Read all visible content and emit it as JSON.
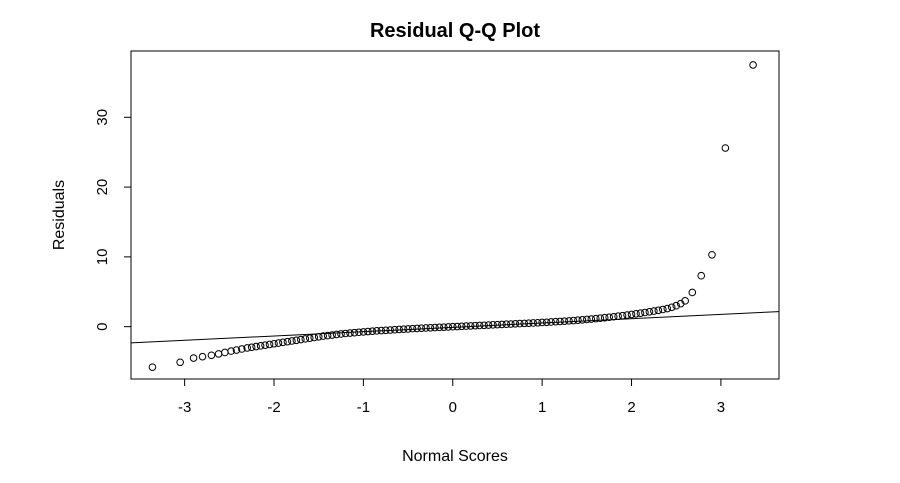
{
  "chart_data": {
    "type": "scatter",
    "title": "Residual Q-Q Plot",
    "xlabel": "Normal Scores",
    "ylabel": "Residuals",
    "xlim": [
      -3.6,
      3.65
    ],
    "ylim": [
      -7.5,
      39.5
    ],
    "x_ticks": [
      -3,
      -2,
      -1,
      0,
      1,
      2,
      3
    ],
    "y_ticks": [
      0,
      10,
      20,
      30
    ],
    "grid": false,
    "reference_line": {
      "slope": 0.62,
      "intercept": -0.1
    },
    "points": [
      {
        "x": -3.36,
        "y": -5.8
      },
      {
        "x": -3.05,
        "y": -5.1
      },
      {
        "x": -2.9,
        "y": -4.5
      },
      {
        "x": -2.8,
        "y": -4.3
      },
      {
        "x": -2.7,
        "y": -4.1
      },
      {
        "x": -2.62,
        "y": -3.9
      },
      {
        "x": -2.55,
        "y": -3.7
      },
      {
        "x": -2.48,
        "y": -3.5
      },
      {
        "x": -2.42,
        "y": -3.35
      },
      {
        "x": -2.36,
        "y": -3.2
      },
      {
        "x": -2.3,
        "y": -3.05
      },
      {
        "x": -2.25,
        "y": -2.95
      },
      {
        "x": -2.2,
        "y": -2.85
      },
      {
        "x": -2.15,
        "y": -2.75
      },
      {
        "x": -2.1,
        "y": -2.65
      },
      {
        "x": -2.05,
        "y": -2.55
      },
      {
        "x": -2.0,
        "y": -2.45
      },
      {
        "x": -1.95,
        "y": -2.35
      },
      {
        "x": -1.9,
        "y": -2.25
      },
      {
        "x": -1.85,
        "y": -2.15
      },
      {
        "x": -1.8,
        "y": -2.05
      },
      {
        "x": -1.75,
        "y": -1.95
      },
      {
        "x": -1.7,
        "y": -1.85
      },
      {
        "x": -1.65,
        "y": -1.75
      },
      {
        "x": -1.6,
        "y": -1.65
      },
      {
        "x": -1.55,
        "y": -1.55
      },
      {
        "x": -1.5,
        "y": -1.45
      },
      {
        "x": -1.45,
        "y": -1.35
      },
      {
        "x": -1.4,
        "y": -1.28
      },
      {
        "x": -1.35,
        "y": -1.2
      },
      {
        "x": -1.3,
        "y": -1.12
      },
      {
        "x": -1.25,
        "y": -1.05
      },
      {
        "x": -1.2,
        "y": -0.98
      },
      {
        "x": -1.15,
        "y": -0.92
      },
      {
        "x": -1.1,
        "y": -0.86
      },
      {
        "x": -1.05,
        "y": -0.8
      },
      {
        "x": -1.0,
        "y": -0.75
      },
      {
        "x": -0.95,
        "y": -0.7
      },
      {
        "x": -0.9,
        "y": -0.65
      },
      {
        "x": -0.85,
        "y": -0.6
      },
      {
        "x": -0.8,
        "y": -0.56
      },
      {
        "x": -0.75,
        "y": -0.52
      },
      {
        "x": -0.7,
        "y": -0.48
      },
      {
        "x": -0.65,
        "y": -0.44
      },
      {
        "x": -0.6,
        "y": -0.4
      },
      {
        "x": -0.55,
        "y": -0.36
      },
      {
        "x": -0.5,
        "y": -0.32
      },
      {
        "x": -0.45,
        "y": -0.28
      },
      {
        "x": -0.4,
        "y": -0.25
      },
      {
        "x": -0.35,
        "y": -0.22
      },
      {
        "x": -0.3,
        "y": -0.19
      },
      {
        "x": -0.25,
        "y": -0.16
      },
      {
        "x": -0.2,
        "y": -0.13
      },
      {
        "x": -0.15,
        "y": -0.1
      },
      {
        "x": -0.1,
        "y": -0.07
      },
      {
        "x": -0.05,
        "y": -0.04
      },
      {
        "x": 0.0,
        "y": -0.01
      },
      {
        "x": 0.05,
        "y": 0.02
      },
      {
        "x": 0.1,
        "y": 0.05
      },
      {
        "x": 0.15,
        "y": 0.08
      },
      {
        "x": 0.2,
        "y": 0.11
      },
      {
        "x": 0.25,
        "y": 0.14
      },
      {
        "x": 0.3,
        "y": 0.17
      },
      {
        "x": 0.35,
        "y": 0.2
      },
      {
        "x": 0.4,
        "y": 0.23
      },
      {
        "x": 0.45,
        "y": 0.26
      },
      {
        "x": 0.5,
        "y": 0.29
      },
      {
        "x": 0.55,
        "y": 0.32
      },
      {
        "x": 0.6,
        "y": 0.35
      },
      {
        "x": 0.65,
        "y": 0.38
      },
      {
        "x": 0.7,
        "y": 0.41
      },
      {
        "x": 0.75,
        "y": 0.44
      },
      {
        "x": 0.8,
        "y": 0.47
      },
      {
        "x": 0.85,
        "y": 0.5
      },
      {
        "x": 0.9,
        "y": 0.53
      },
      {
        "x": 0.95,
        "y": 0.56
      },
      {
        "x": 1.0,
        "y": 0.6
      },
      {
        "x": 1.05,
        "y": 0.63
      },
      {
        "x": 1.1,
        "y": 0.67
      },
      {
        "x": 1.15,
        "y": 0.71
      },
      {
        "x": 1.2,
        "y": 0.75
      },
      {
        "x": 1.25,
        "y": 0.79
      },
      {
        "x": 1.3,
        "y": 0.83
      },
      {
        "x": 1.35,
        "y": 0.88
      },
      {
        "x": 1.4,
        "y": 0.93
      },
      {
        "x": 1.45,
        "y": 0.98
      },
      {
        "x": 1.5,
        "y": 1.03
      },
      {
        "x": 1.55,
        "y": 1.09
      },
      {
        "x": 1.6,
        "y": 1.15
      },
      {
        "x": 1.65,
        "y": 1.21
      },
      {
        "x": 1.7,
        "y": 1.28
      },
      {
        "x": 1.75,
        "y": 1.35
      },
      {
        "x": 1.8,
        "y": 1.42
      },
      {
        "x": 1.85,
        "y": 1.5
      },
      {
        "x": 1.9,
        "y": 1.58
      },
      {
        "x": 1.95,
        "y": 1.66
      },
      {
        "x": 2.0,
        "y": 1.75
      },
      {
        "x": 2.05,
        "y": 1.84
      },
      {
        "x": 2.1,
        "y": 1.93
      },
      {
        "x": 2.15,
        "y": 2.03
      },
      {
        "x": 2.2,
        "y": 2.13
      },
      {
        "x": 2.25,
        "y": 2.23
      },
      {
        "x": 2.3,
        "y": 2.34
      },
      {
        "x": 2.35,
        "y": 2.46
      },
      {
        "x": 2.4,
        "y": 2.6
      },
      {
        "x": 2.45,
        "y": 2.78
      },
      {
        "x": 2.5,
        "y": 3.0
      },
      {
        "x": 2.55,
        "y": 3.3
      },
      {
        "x": 2.6,
        "y": 3.7
      },
      {
        "x": 2.68,
        "y": 4.9
      },
      {
        "x": 2.78,
        "y": 7.3
      },
      {
        "x": 2.9,
        "y": 10.3
      },
      {
        "x": 3.05,
        "y": 25.6
      },
      {
        "x": 3.36,
        "y": 37.5
      }
    ]
  }
}
